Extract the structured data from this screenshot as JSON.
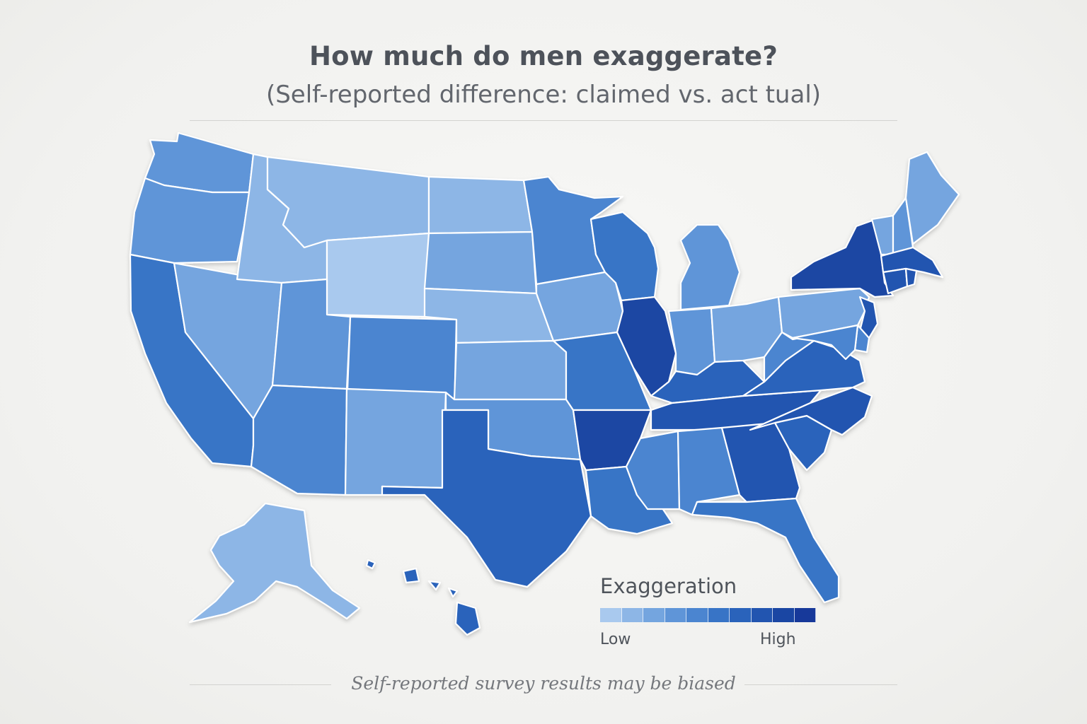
{
  "header": {
    "title": "How much do men exaggerate?",
    "subtitle": "(Self-reported difference: claimed vs. act tual)"
  },
  "legend": {
    "title": "Exaggeration",
    "low_label": "Low",
    "high_label": "High",
    "scale_colors": [
      "#a9c9ee",
      "#8db6e6",
      "#74a5df",
      "#5f95d8",
      "#4b85d0",
      "#3874c6",
      "#2a63bb",
      "#2255b0",
      "#1a46a3",
      "#17399a"
    ]
  },
  "footnote": "Self-reported survey results may be biased",
  "chart_data": {
    "type": "choropleth",
    "scale": "ordinal 1 (low) to 10 (high)",
    "states": {
      "WA": 4,
      "OR": 4,
      "CA": 6,
      "NV": 3,
      "ID": 2,
      "MT": 2,
      "WY": 1,
      "UT": 4,
      "AZ": 5,
      "CO": 5,
      "NM": 3,
      "ND": 2,
      "SD": 3,
      "NE": 2,
      "KS": 3,
      "OK": 4,
      "TX": 7,
      "MN": 5,
      "IA": 3,
      "MO": 6,
      "AR": 9,
      "LA": 6,
      "WI": 6,
      "IL": 9,
      "MI": 4,
      "IN": 4,
      "OH": 3,
      "KY": 7,
      "TN": 8,
      "MS": 5,
      "AL": 5,
      "GA": 8,
      "FL": 6,
      "SC": 7,
      "NC": 8,
      "VA": 7,
      "WV": 5,
      "PA": 3,
      "NY": 9,
      "VT": 3,
      "NH": 4,
      "ME": 3,
      "MA": 8,
      "CT": 8,
      "RI": 8,
      "NJ": 8,
      "DE": 5,
      "MD": 5,
      "AK": 2,
      "HI": 7
    }
  }
}
